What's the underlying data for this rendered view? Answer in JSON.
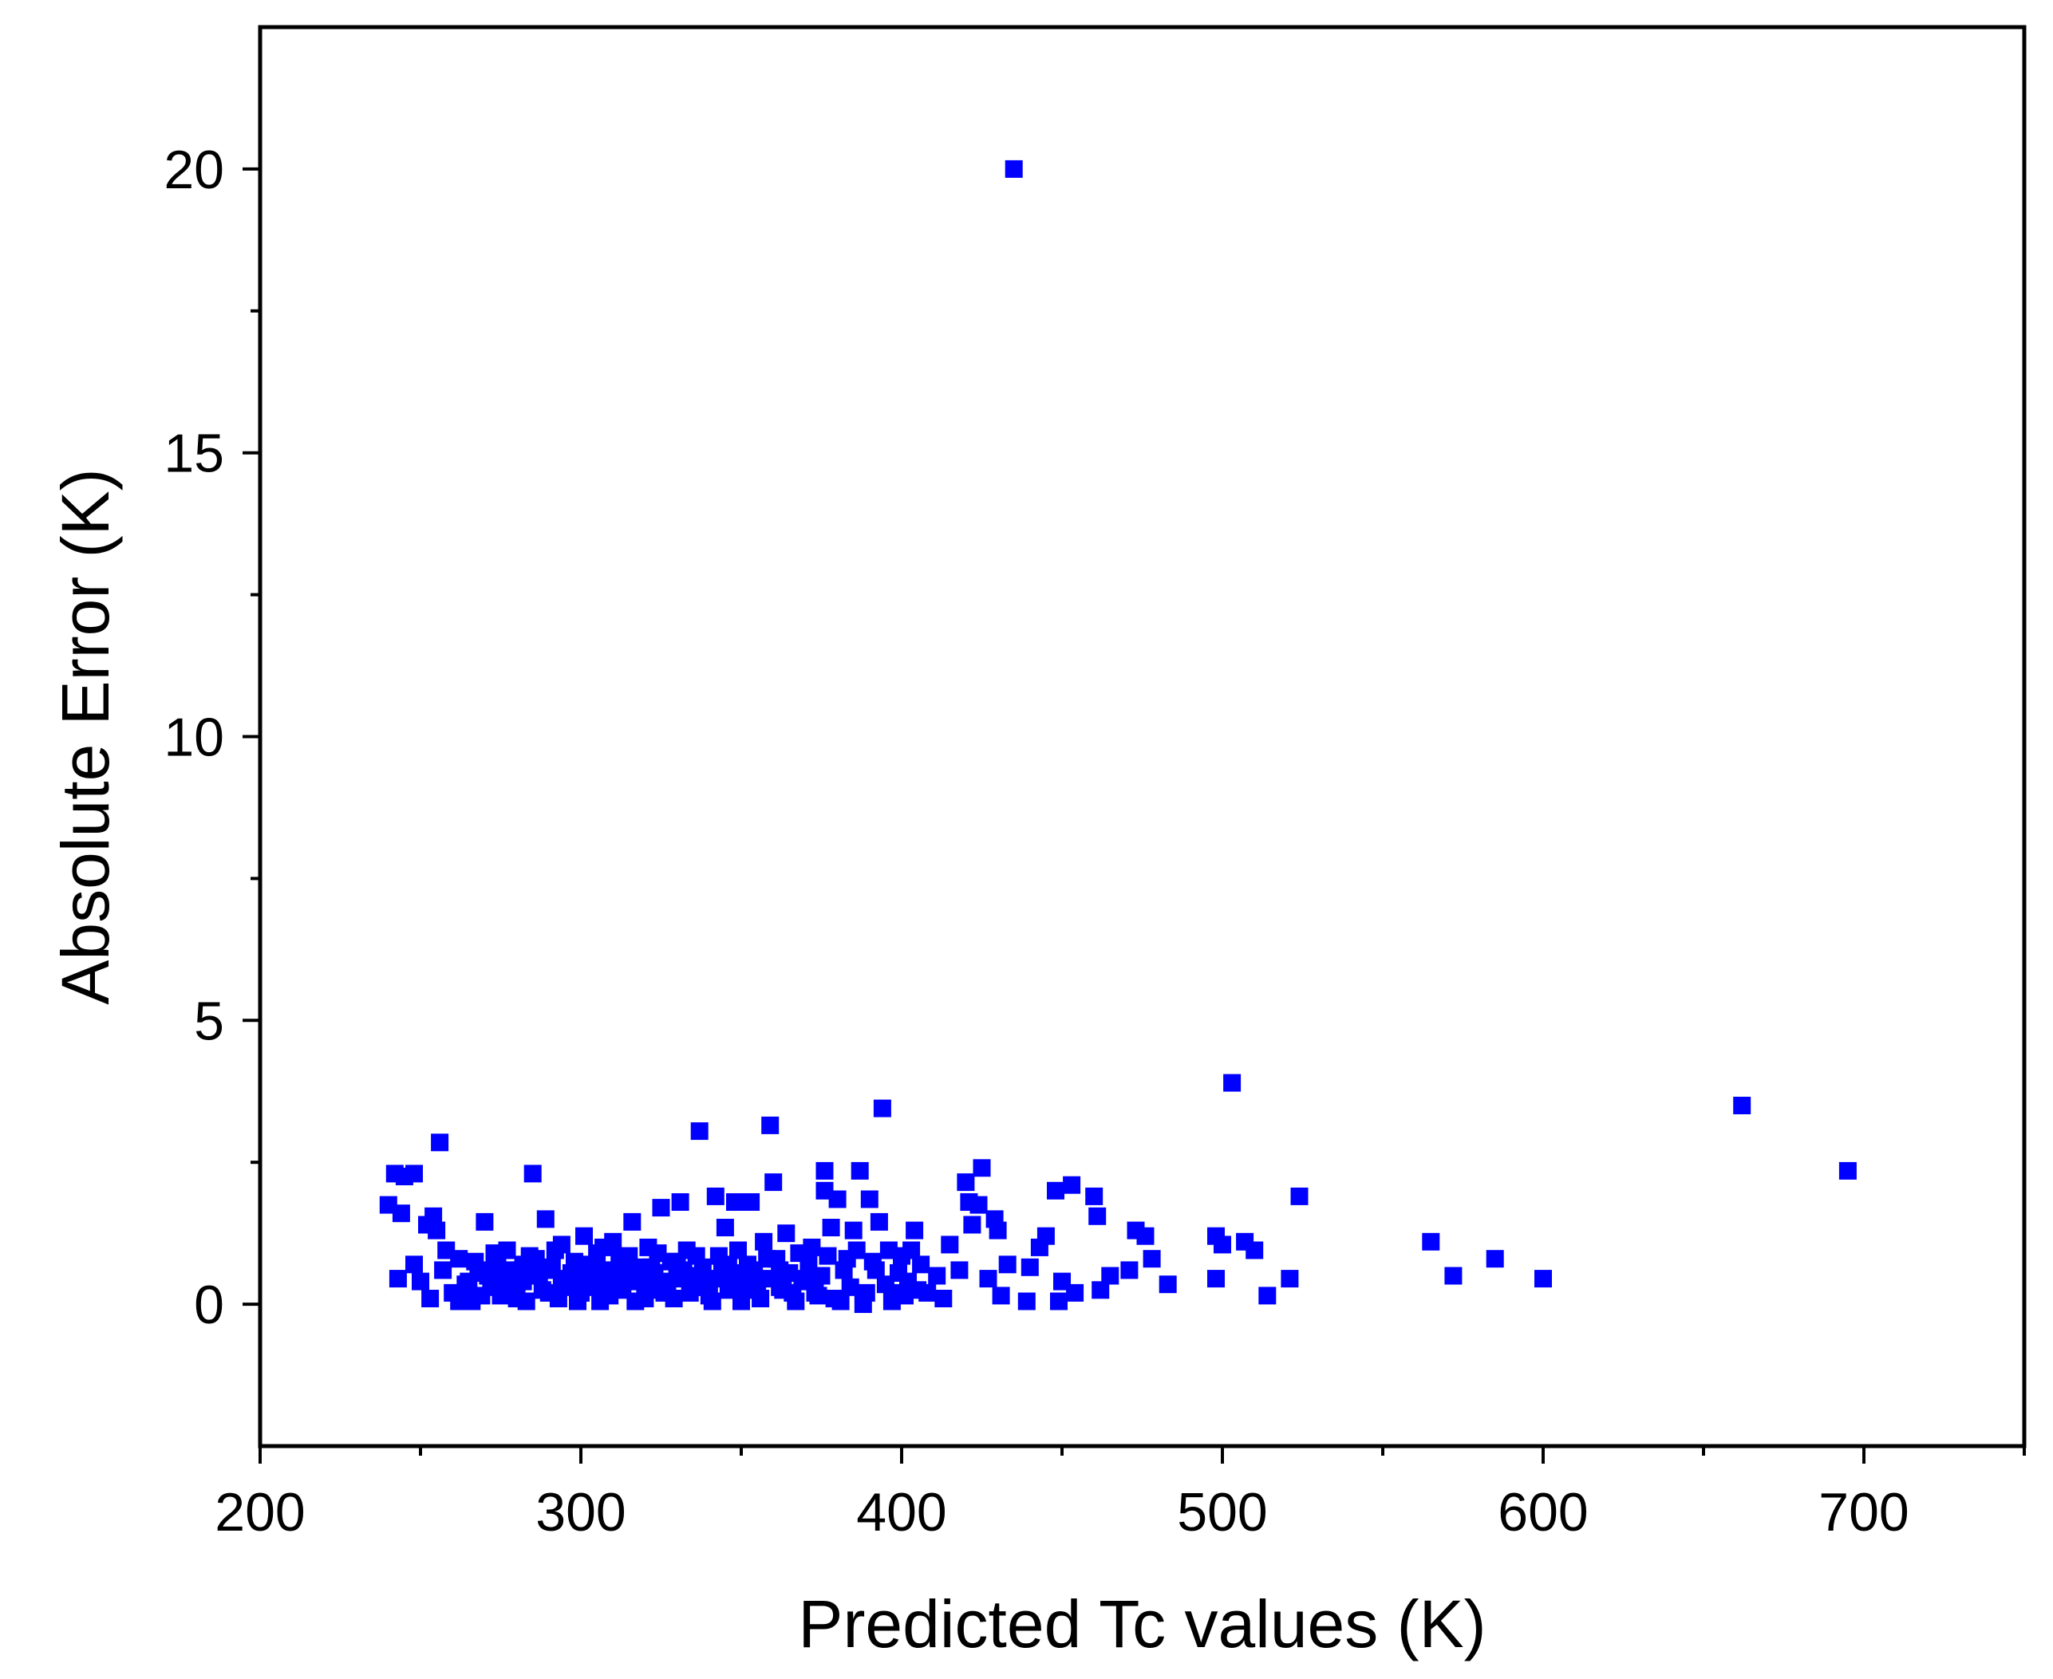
{
  "chart_data": {
    "type": "scatter",
    "title": "",
    "xlabel": "Predicted Tc values (K)",
    "ylabel": "Absolute Error (K)",
    "xlim": [
      200,
      750
    ],
    "ylim": [
      -2.5,
      22.5
    ],
    "x_ticks": [
      200,
      300,
      400,
      500,
      600,
      700
    ],
    "x_minor_ticks": [
      250,
      350,
      450,
      550,
      650,
      750
    ],
    "y_ticks": [
      0,
      5,
      10,
      15,
      20
    ],
    "y_minor_ticks": [
      2.5,
      7.5,
      12.5,
      17.5
    ],
    "x_tick_labels": [
      "200",
      "300",
      "400",
      "500",
      "600",
      "700"
    ],
    "y_tick_labels": [
      "0",
      "5",
      "10",
      "15",
      "20"
    ],
    "grid": false,
    "legend": "none",
    "marker": "square",
    "color": "#0000ff",
    "series": [
      {
        "points": [
          [
            435,
            20.0
          ],
          [
            503,
            3.9
          ],
          [
            662,
            3.5
          ],
          [
            695,
            2.35
          ],
          [
            524,
            1.9
          ],
          [
            565,
            1.1
          ],
          [
            572,
            0.5
          ],
          [
            585,
            0.8
          ],
          [
            600,
            0.45
          ],
          [
            242,
            2.3
          ],
          [
            245,
            2.25
          ],
          [
            248,
            2.3
          ],
          [
            240,
            1.75
          ],
          [
            244,
            1.6
          ],
          [
            252,
            1.4
          ],
          [
            256,
            2.85
          ],
          [
            243,
            0.45
          ],
          [
            248,
            0.7
          ],
          [
            250,
            0.4
          ],
          [
            254,
            1.55
          ],
          [
            255,
            1.3
          ],
          [
            258,
            0.95
          ],
          [
            253,
            0.1
          ],
          [
            257,
            0.6
          ],
          [
            260,
            0.2
          ],
          [
            262,
            0.8
          ],
          [
            265,
            0.4
          ],
          [
            266,
            0.05
          ],
          [
            268,
            0.55
          ],
          [
            270,
            1.45
          ],
          [
            272,
            0.3
          ],
          [
            274,
            0.7
          ],
          [
            275,
            0.15
          ],
          [
            277,
            0.95
          ],
          [
            279,
            0.35
          ],
          [
            281,
            0.6
          ],
          [
            283,
            0.05
          ],
          [
            285,
            2.3
          ],
          [
            286,
            0.8
          ],
          [
            288,
            0.25
          ],
          [
            289,
            1.5
          ],
          [
            291,
            0.65
          ],
          [
            293,
            0.1
          ],
          [
            294,
            1.05
          ],
          [
            296,
            0.45
          ],
          [
            298,
            0.75
          ],
          [
            300,
            0.2
          ],
          [
            301,
            1.2
          ],
          [
            303,
            0.55
          ],
          [
            305,
            0.9
          ],
          [
            306,
            0.05
          ],
          [
            308,
            0.35
          ],
          [
            310,
            1.1
          ],
          [
            311,
            0.6
          ],
          [
            313,
            0.25
          ],
          [
            315,
            0.85
          ],
          [
            316,
            1.45
          ],
          [
            318,
            0.4
          ],
          [
            320,
            0.1
          ],
          [
            321,
            1.0
          ],
          [
            323,
            0.55
          ],
          [
            325,
            1.7
          ],
          [
            326,
            0.2
          ],
          [
            328,
            0.75
          ],
          [
            330,
            0.45
          ],
          [
            331,
            1.8
          ],
          [
            333,
            0.95
          ],
          [
            335,
            0.3
          ],
          [
            337,
            3.05
          ],
          [
            338,
            0.65
          ],
          [
            340,
            0.15
          ],
          [
            342,
            1.9
          ],
          [
            343,
            0.85
          ],
          [
            345,
            1.35
          ],
          [
            347,
            0.5
          ],
          [
            348,
            1.8
          ],
          [
            350,
            0.05
          ],
          [
            352,
            0.7
          ],
          [
            353,
            1.8
          ],
          [
            355,
            0.35
          ],
          [
            357,
            1.1
          ],
          [
            359,
            3.15
          ],
          [
            360,
            2.15
          ],
          [
            362,
            0.6
          ],
          [
            364,
            1.25
          ],
          [
            366,
            0.2
          ],
          [
            368,
            0.9
          ],
          [
            370,
            0.45
          ],
          [
            372,
            1.0
          ],
          [
            374,
            0.15
          ],
          [
            376,
            2.35
          ],
          [
            376,
            2.0
          ],
          [
            378,
            1.35
          ],
          [
            380,
            1.85
          ],
          [
            381,
            0.05
          ],
          [
            383,
            0.8
          ],
          [
            385,
            1.3
          ],
          [
            387,
            2.35
          ],
          [
            388,
            0.0
          ],
          [
            390,
            1.85
          ],
          [
            392,
            0.6
          ],
          [
            393,
            1.45
          ],
          [
            394,
            3.45
          ],
          [
            396,
            0.95
          ],
          [
            398,
            0.2
          ],
          [
            400,
            0.85
          ],
          [
            402,
            0.4
          ],
          [
            404,
            1.3
          ],
          [
            406,
            0.7
          ],
          [
            408,
            0.2
          ],
          [
            411,
            0.5
          ],
          [
            413,
            0.1
          ],
          [
            415,
            1.05
          ],
          [
            418,
            0.6
          ],
          [
            420,
            2.15
          ],
          [
            421,
            1.8
          ],
          [
            422,
            1.4
          ],
          [
            424,
            1.75
          ],
          [
            425,
            2.4
          ],
          [
            427,
            0.45
          ],
          [
            429,
            1.5
          ],
          [
            430,
            1.3
          ],
          [
            431,
            0.15
          ],
          [
            433,
            0.7
          ],
          [
            439,
            0.05
          ],
          [
            440,
            0.65
          ],
          [
            443,
            1.0
          ],
          [
            445,
            1.2
          ],
          [
            448,
            2.0
          ],
          [
            449,
            0.05
          ],
          [
            450,
            0.4
          ],
          [
            453,
            2.1
          ],
          [
            454,
            0.2
          ],
          [
            460,
            1.9
          ],
          [
            461,
            1.55
          ],
          [
            462,
            0.25
          ],
          [
            465,
            0.5
          ],
          [
            471,
            0.6
          ],
          [
            473,
            1.3
          ],
          [
            476,
            1.2
          ],
          [
            478,
            0.8
          ],
          [
            483,
            0.35
          ],
          [
            498,
            1.2
          ],
          [
            498,
            0.45
          ],
          [
            500,
            1.05
          ],
          [
            507,
            1.1
          ],
          [
            510,
            0.95
          ],
          [
            514,
            0.15
          ],
          [
            521,
            0.45
          ],
          [
            262,
            0.05
          ],
          [
            264,
            0.35
          ],
          [
            267,
            0.75
          ],
          [
            269,
            0.15
          ],
          [
            271,
            0.5
          ],
          [
            273,
            0.9
          ],
          [
            276,
            0.25
          ],
          [
            278,
            0.6
          ],
          [
            280,
            0.1
          ],
          [
            282,
            0.4
          ],
          [
            284,
            0.85
          ],
          [
            287,
            0.5
          ],
          [
            290,
            0.2
          ],
          [
            292,
            0.95
          ],
          [
            295,
            0.3
          ],
          [
            297,
            0.55
          ],
          [
            299,
            0.05
          ],
          [
            302,
            0.7
          ],
          [
            304,
            0.35
          ],
          [
            307,
            1.0
          ],
          [
            309,
            0.15
          ],
          [
            312,
            0.8
          ],
          [
            314,
            0.45
          ],
          [
            317,
            0.05
          ],
          [
            319,
            0.65
          ],
          [
            322,
            0.25
          ],
          [
            324,
            0.9
          ],
          [
            327,
            0.4
          ],
          [
            329,
            0.1
          ],
          [
            332,
            0.6
          ],
          [
            334,
            0.2
          ],
          [
            336,
            0.85
          ],
          [
            339,
            0.4
          ],
          [
            341,
            0.05
          ],
          [
            344,
            0.55
          ],
          [
            346,
            0.25
          ],
          [
            349,
            0.95
          ],
          [
            351,
            0.3
          ],
          [
            354,
            0.6
          ],
          [
            356,
            0.1
          ],
          [
            358,
            0.45
          ],
          [
            361,
            0.8
          ],
          [
            363,
            0.25
          ],
          [
            365,
            0.55
          ],
          [
            367,
            0.05
          ],
          [
            369,
            0.4
          ],
          [
            371,
            0.7
          ],
          [
            373,
            0.2
          ],
          [
            375,
            0.5
          ],
          [
            377,
            0.85
          ],
          [
            379,
            0.1
          ],
          [
            382,
            0.6
          ],
          [
            384,
            0.3
          ],
          [
            386,
            0.95
          ],
          [
            389,
            0.2
          ],
          [
            391,
            0.75
          ],
          [
            395,
            0.35
          ],
          [
            397,
            0.05
          ],
          [
            399,
            0.55
          ],
          [
            401,
            0.15
          ],
          [
            403,
            0.95
          ],
          [
            405,
            0.25
          ],
          [
            270,
            0.6
          ],
          [
            274,
            0.4
          ],
          [
            278,
            0.2
          ],
          [
            282,
            0.7
          ],
          [
            286,
            0.5
          ],
          [
            290,
            0.6
          ],
          [
            294,
            0.35
          ],
          [
            298,
            0.45
          ],
          [
            302,
            0.3
          ],
          [
            306,
            0.6
          ],
          [
            310,
            0.35
          ],
          [
            314,
            0.7
          ],
          [
            318,
            0.55
          ],
          [
            322,
            0.65
          ],
          [
            326,
            0.35
          ],
          [
            330,
            0.75
          ],
          [
            334,
            0.5
          ],
          [
            338,
            0.3
          ],
          [
            342,
            0.45
          ],
          [
            346,
            0.7
          ],
          [
            350,
            0.55
          ],
          [
            354,
            0.25
          ],
          [
            358,
            0.8
          ],
          [
            362,
            0.3
          ]
        ]
      }
    ]
  }
}
